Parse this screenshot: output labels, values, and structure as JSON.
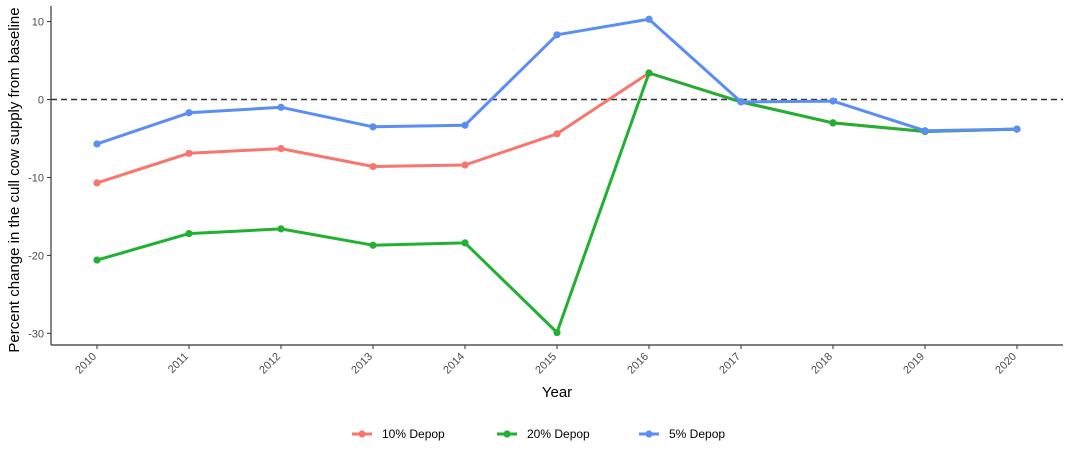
{
  "chart_data": {
    "type": "line",
    "title": "",
    "xlabel": "Year",
    "ylabel": "Percent change in the cull cow supply from baseline",
    "x": [
      "2010",
      "2011",
      "2012",
      "2013",
      "2014",
      "2015",
      "2016",
      "2017",
      "2018",
      "2019",
      "2020"
    ],
    "yticks": [
      10,
      0,
      -10,
      -20,
      -30
    ],
    "ylim": [
      -31.5,
      12
    ],
    "reference_line": {
      "y": 0,
      "style": "dashed"
    },
    "legend_position": "bottom",
    "grid": false,
    "series": [
      {
        "name": "10% Depop",
        "color": "#F8766D",
        "values": [
          -10.7,
          -6.9,
          -6.3,
          -8.6,
          -8.4,
          -4.4,
          3.4,
          -0.3,
          -3.0,
          -4.1,
          -3.8
        ]
      },
      {
        "name": "20% Depop",
        "color": "#22B033",
        "values": [
          -20.6,
          -17.2,
          -16.6,
          -18.7,
          -18.4,
          -29.9,
          3.4,
          -0.3,
          -3.0,
          -4.1,
          -3.8
        ]
      },
      {
        "name": "5% Depop",
        "color": "#5B8EF5",
        "values": [
          -5.7,
          -1.7,
          -1.0,
          -3.5,
          -3.3,
          8.3,
          10.3,
          -0.3,
          -0.2,
          -4.0,
          -3.8
        ]
      }
    ]
  }
}
